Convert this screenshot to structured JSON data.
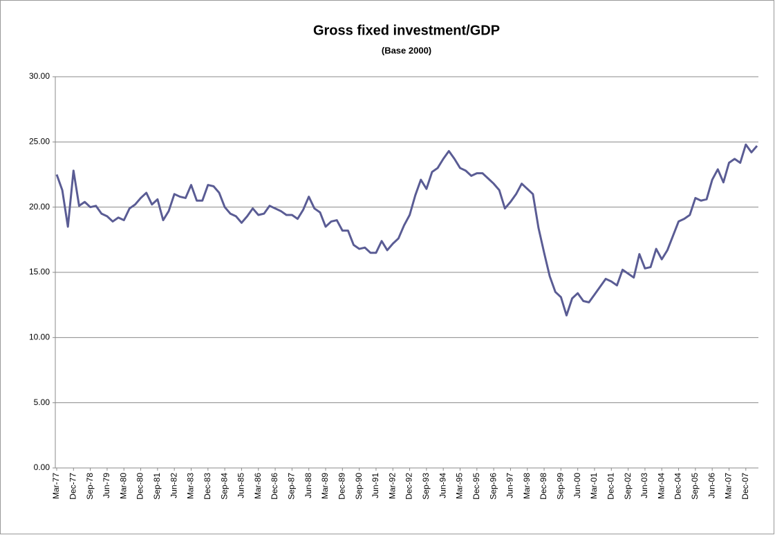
{
  "chart_data": {
    "type": "line",
    "title": "Gross fixed investment/GDP",
    "subtitle": "(Base 2000)",
    "categories": [
      "Mar-77",
      null,
      null,
      "Dec-77",
      null,
      null,
      "Sep-78",
      null,
      null,
      "Jun-79",
      null,
      null,
      "Mar-80",
      null,
      null,
      "Dec-80",
      null,
      null,
      "Sep-81",
      null,
      null,
      "Jun-82",
      null,
      null,
      "Mar-83",
      null,
      null,
      "Dec-83",
      null,
      null,
      "Sep-84",
      null,
      null,
      "Jun-85",
      null,
      null,
      "Mar-86",
      null,
      null,
      "Dec-86",
      null,
      null,
      "Sep-87",
      null,
      null,
      "Jun-88",
      null,
      null,
      "Mar-89",
      null,
      null,
      "Dec-89",
      null,
      null,
      "Sep-90",
      null,
      null,
      "Jun-91",
      null,
      null,
      "Mar-92",
      null,
      null,
      "Dec-92",
      null,
      null,
      "Sep-93",
      null,
      null,
      "Jun-94",
      null,
      null,
      "Mar-95",
      null,
      null,
      "Dec-95",
      null,
      null,
      "Sep-96",
      null,
      null,
      "Jun-97",
      null,
      null,
      "Mar-98",
      null,
      null,
      "Dec-98",
      null,
      null,
      "Sep-99",
      null,
      null,
      "Jun-00",
      null,
      null,
      "Mar-01",
      null,
      null,
      "Dec-01",
      null,
      null,
      "Sep-02",
      null,
      null,
      "Jun-03",
      null,
      null,
      "Mar-04",
      null,
      null,
      "Dec-04",
      null,
      null,
      "Sep-05",
      null,
      null,
      "Jun-06",
      null,
      null,
      "Mar-07",
      null,
      null,
      "Dec-07",
      null,
      null
    ],
    "values": [
      22.5,
      21.3,
      18.5,
      22.8,
      20.1,
      20.4,
      20.0,
      20.1,
      19.5,
      19.3,
      18.9,
      19.2,
      19.0,
      19.9,
      20.2,
      20.7,
      21.1,
      20.2,
      20.6,
      19.0,
      19.7,
      21.0,
      20.8,
      20.7,
      21.7,
      20.5,
      20.5,
      21.7,
      21.6,
      21.1,
      20.0,
      19.5,
      19.3,
      18.8,
      19.3,
      19.9,
      19.4,
      19.5,
      20.1,
      19.9,
      19.7,
      19.4,
      19.4,
      19.1,
      19.8,
      20.8,
      19.9,
      19.6,
      18.5,
      18.9,
      19.0,
      18.2,
      18.2,
      17.1,
      16.8,
      16.9,
      16.5,
      16.5,
      17.4,
      16.7,
      17.2,
      17.6,
      18.6,
      19.4,
      20.9,
      22.1,
      21.4,
      22.7,
      23.0,
      23.7,
      24.3,
      23.7,
      23.0,
      22.8,
      22.4,
      22.6,
      22.6,
      22.2,
      21.8,
      21.3,
      19.9,
      20.4,
      21.0,
      21.8,
      21.4,
      21.0,
      18.4,
      16.5,
      14.7,
      13.5,
      13.1,
      11.7,
      13.0,
      13.4,
      12.8,
      12.7,
      13.3,
      13.9,
      14.5,
      14.3,
      14.0,
      15.2,
      14.9,
      14.6,
      16.4,
      15.3,
      15.4,
      16.8,
      16.0,
      16.7,
      17.8,
      18.9,
      19.1,
      19.4,
      20.7,
      20.5,
      20.6,
      22.1,
      22.9,
      21.9,
      23.4,
      23.7,
      23.4,
      24.8,
      24.2,
      24.7
    ],
    "color": "#5a5c94",
    "ylim": [
      0,
      30
    ],
    "yticks": [
      {
        "value": 0,
        "label": "0.00"
      },
      {
        "value": 5,
        "label": "5.00"
      },
      {
        "value": 10,
        "label": "10.00"
      },
      {
        "value": 15,
        "label": "15.00"
      },
      {
        "value": 20,
        "label": "20.00"
      },
      {
        "value": 25,
        "label": "25.00"
      },
      {
        "value": 30,
        "label": "30.00"
      }
    ],
    "grid": true
  }
}
